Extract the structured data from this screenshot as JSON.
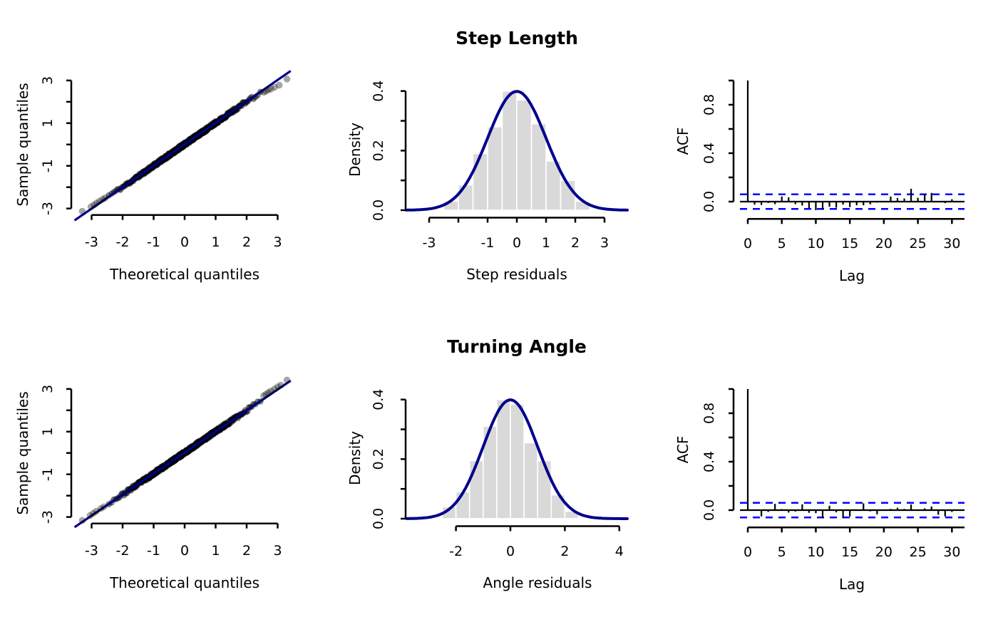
{
  "figure": {
    "background": "#ffffff",
    "section_titles": {
      "top": "Step Length",
      "bottom": "Turning Angle"
    },
    "colors": {
      "curve": "#00008B",
      "reference_line": "#00008B",
      "confidence_band": "#0000FF",
      "bar_fill": "#D9D9D9",
      "bar_border": "#FFFFFF",
      "point": "#000000",
      "axis": "#000000"
    }
  },
  "chart_data": [
    {
      "id": "qq-step",
      "type": "scatter",
      "subtype": "qqplot",
      "xlabel": "Theoretical quantiles",
      "ylabel": "Sample quantiles",
      "xticks": {
        "values": [
          -3,
          -2,
          -1,
          0,
          1,
          2,
          3
        ],
        "labels": [
          "-3",
          "-2",
          "-1",
          "0",
          "1",
          "2",
          "3"
        ]
      },
      "yticks": {
        "values": [
          -3,
          -2,
          -1,
          0,
          1,
          2,
          3
        ],
        "labels": [
          "-3",
          "",
          "-1",
          "",
          "1",
          "",
          "3"
        ]
      },
      "xlim": [
        -3.6,
        3.45
      ],
      "ylim": [
        -3.5,
        3.45
      ],
      "line": {
        "slope": 1.005,
        "intercept": 0.01,
        "t_range": [
          -3.55,
          3.42
        ]
      },
      "points": {
        "n": 500,
        "seed": 11,
        "tail_dev": [
          0.14,
          -0.15
        ],
        "jitter": 0.16,
        "description": "dense black diagonal cloud of ~1000 overlapping residual quantile points along y=x"
      },
      "outliers_low": [
        [
          -3.3,
          -3.13
        ],
        [
          -3.02,
          -2.92
        ],
        [
          -2.92,
          -2.83
        ],
        [
          -2.84,
          -2.74
        ],
        [
          -2.74,
          -2.65
        ],
        [
          -2.64,
          -2.57
        ],
        [
          -2.56,
          -2.5
        ]
      ],
      "outliers_high": [
        [
          2.55,
          2.45
        ],
        [
          2.62,
          2.5
        ],
        [
          2.7,
          2.56
        ],
        [
          2.78,
          2.6
        ],
        [
          2.9,
          2.68
        ],
        [
          3.05,
          2.78
        ],
        [
          3.3,
          3.07
        ]
      ]
    },
    {
      "id": "hist-step",
      "type": "bar",
      "title": "Step Length",
      "xlabel": "Step residuals",
      "ylabel": "Density",
      "xticks": {
        "values": [
          -3,
          -2,
          -1,
          0,
          1,
          2,
          3
        ],
        "labels": [
          "-3",
          "",
          "-1",
          "0",
          "1",
          "2",
          "3"
        ]
      },
      "yticks": {
        "values": [
          0,
          0.1,
          0.2,
          0.3,
          0.4
        ],
        "labels": [
          "0.0",
          "",
          "0.2",
          "",
          "0.4"
        ]
      },
      "bins": {
        "breaks": [
          -2.5,
          -2,
          -1.5,
          -1,
          -0.5,
          0,
          0.5,
          1,
          1.5,
          2,
          2.5
        ],
        "densities": [
          0.03,
          0.085,
          0.19,
          0.28,
          0.4,
          0.37,
          0.29,
          0.165,
          0.1,
          0.03
        ]
      },
      "curve": {
        "dist": "normal",
        "mean": 0,
        "sd": 1,
        "peak": 0.3989
      },
      "ylim": [
        0,
        0.4
      ]
    },
    {
      "id": "acf-step",
      "type": "stem",
      "subtype": "acf",
      "xlabel": "Lag",
      "ylabel": "ACF",
      "xticks": {
        "values": [
          0,
          5,
          10,
          15,
          20,
          25,
          30
        ],
        "labels": [
          "0",
          "5",
          "10",
          "15",
          "20",
          "25",
          "30"
        ]
      },
      "yticks": {
        "values": [
          0,
          0.2,
          0.4,
          0.6,
          0.8,
          1.0
        ],
        "labels": [
          "0.0",
          "",
          "0.4",
          "",
          "0.8",
          ""
        ]
      },
      "confidence": 0.06,
      "lags": [
        0,
        1,
        2,
        3,
        4,
        5,
        6,
        7,
        8,
        9,
        10,
        11,
        12,
        13,
        14,
        15,
        16,
        17,
        18,
        19,
        20,
        21,
        22,
        23,
        24,
        25,
        26,
        27,
        28,
        29,
        30
      ],
      "values": [
        1.0,
        -0.025,
        -0.028,
        -0.011,
        -0.021,
        0.042,
        0.035,
        -0.021,
        -0.032,
        -0.055,
        -0.071,
        -0.067,
        -0.042,
        -0.05,
        -0.025,
        -0.045,
        -0.03,
        -0.03,
        -0.022,
        -0.008,
        0.005,
        0.042,
        0.03,
        0.026,
        0.106,
        0.031,
        0.065,
        0.072,
        0.006,
        -0.012,
        0.02
      ]
    },
    {
      "id": "qq-angle",
      "type": "scatter",
      "subtype": "qqplot",
      "xlabel": "Theoretical quantiles",
      "ylabel": "Sample quantiles",
      "xticks": {
        "values": [
          -3,
          -2,
          -1,
          0,
          1,
          2,
          3
        ],
        "labels": [
          "-3",
          "-2",
          "-1",
          "0",
          "1",
          "2",
          "3"
        ]
      },
      "yticks": {
        "values": [
          -3,
          -2,
          -1,
          0,
          1,
          2,
          3
        ],
        "labels": [
          "-3",
          "",
          "-1",
          "",
          "1",
          "",
          "3"
        ]
      },
      "xlim": [
        -3.6,
        3.45
      ],
      "ylim": [
        -3.5,
        3.55
      ],
      "line": {
        "slope": 0.985,
        "intercept": 0.02,
        "t_range": [
          -3.55,
          3.42
        ]
      },
      "points": {
        "n": 500,
        "seed": 23,
        "tail_dev": [
          0.12,
          0.15
        ],
        "jitter": 0.16,
        "description": "dense black diagonal cloud of ~1000 overlapping residual quantile points along y=x, upper tail above line"
      },
      "outliers_low": [
        [
          -3.3,
          -3.16
        ],
        [
          -3.05,
          -2.93
        ],
        [
          -2.95,
          -2.83
        ],
        [
          -2.85,
          -2.73
        ],
        [
          -2.7,
          -2.6
        ],
        [
          -2.6,
          -2.52
        ]
      ],
      "outliers_high": [
        [
          2.55,
          2.68
        ],
        [
          2.62,
          2.75
        ],
        [
          2.7,
          2.83
        ],
        [
          2.78,
          2.9
        ],
        [
          2.9,
          3.0
        ],
        [
          3.0,
          3.1
        ],
        [
          3.1,
          3.18
        ],
        [
          3.3,
          3.42
        ]
      ]
    },
    {
      "id": "hist-angle",
      "type": "bar",
      "title": "Turning Angle",
      "xlabel": "Angle residuals",
      "ylabel": "Density",
      "xticks": {
        "values": [
          -2,
          0,
          2,
          4
        ],
        "labels": [
          "-2",
          "0",
          "2",
          "4"
        ]
      },
      "yticks": {
        "values": [
          0,
          0.1,
          0.2,
          0.3,
          0.4
        ],
        "labels": [
          "0.0",
          "",
          "0.2",
          "",
          "0.4"
        ]
      },
      "bins": {
        "breaks": [
          -2.5,
          -2,
          -1.5,
          -1,
          -0.5,
          0,
          0.5,
          1,
          1.5,
          2,
          2.5
        ],
        "densities": [
          0.04,
          0.09,
          0.195,
          0.31,
          0.4,
          0.385,
          0.255,
          0.195,
          0.08,
          0.025
        ]
      },
      "curve": {
        "dist": "normal",
        "mean": 0,
        "sd": 1,
        "peak": 0.3989
      },
      "ylim": [
        0,
        0.4
      ]
    },
    {
      "id": "acf-angle",
      "type": "stem",
      "subtype": "acf",
      "xlabel": "Lag",
      "ylabel": "ACF",
      "xticks": {
        "values": [
          0,
          5,
          10,
          15,
          20,
          25,
          30
        ],
        "labels": [
          "0",
          "5",
          "10",
          "15",
          "20",
          "25",
          "30"
        ]
      },
      "yticks": {
        "values": [
          0,
          0.2,
          0.4,
          0.6,
          0.8,
          1.0
        ],
        "labels": [
          "0.0",
          "",
          "0.4",
          "",
          "0.8",
          ""
        ]
      },
      "confidence": 0.06,
      "lags": [
        0,
        1,
        2,
        3,
        4,
        5,
        6,
        7,
        8,
        9,
        10,
        11,
        12,
        13,
        14,
        15,
        16,
        17,
        18,
        19,
        20,
        21,
        22,
        23,
        24,
        25,
        26,
        27,
        28,
        29,
        30
      ],
      "values": [
        1.0,
        0.003,
        -0.052,
        -0.015,
        0.052,
        0.008,
        -0.02,
        -0.012,
        0.048,
        -0.022,
        -0.025,
        -0.068,
        0.036,
        -0.018,
        -0.066,
        -0.052,
        0.006,
        0.056,
        -0.01,
        -0.035,
        -0.005,
        0.01,
        0.02,
        0.01,
        0.047,
        -0.005,
        0.015,
        0.03,
        -0.038,
        -0.052,
        -0.015
      ]
    }
  ]
}
